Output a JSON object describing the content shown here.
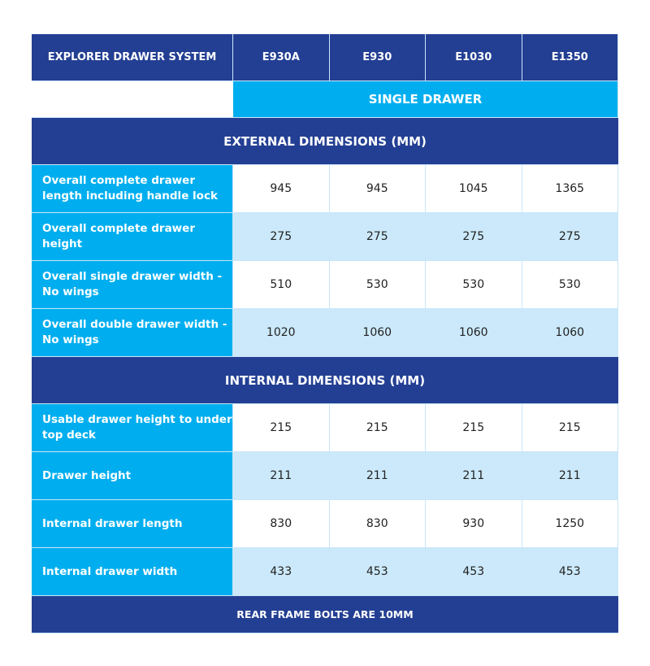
{
  "header": {
    "title": "EXPLORER DRAWER SYSTEM",
    "models": [
      "E930A",
      "E930",
      "E1030",
      "E1350"
    ]
  },
  "subheader": "SINGLE DRAWER",
  "sections": [
    {
      "title": "EXTERNAL DIMENSIONS (MM)",
      "rows": [
        {
          "label": "Overall complete drawer length including handle lock",
          "values": [
            "945",
            "945",
            "1045",
            "1365"
          ]
        },
        {
          "label": "Overall complete drawer height",
          "values": [
            "275",
            "275",
            "275",
            "275"
          ]
        },
        {
          "label": "Overall single drawer width - No wings",
          "values": [
            "510",
            "530",
            "530",
            "530"
          ]
        },
        {
          "label": "Overall double drawer width - No wings",
          "values": [
            "1020",
            "1060",
            "1060",
            "1060"
          ]
        }
      ]
    },
    {
      "title": "INTERNAL DIMENSIONS (MM)",
      "rows": [
        {
          "label": "Usable drawer height to under top deck",
          "values": [
            "215",
            "215",
            "215",
            "215"
          ]
        },
        {
          "label": "Drawer height",
          "values": [
            "211",
            "211",
            "211",
            "211"
          ]
        },
        {
          "label": "Internal drawer length",
          "values": [
            "830",
            "830",
            "930",
            "1250"
          ]
        },
        {
          "label": "Internal drawer width",
          "values": [
            "433",
            "453",
            "453",
            "453"
          ]
        }
      ]
    }
  ],
  "footer": "REAR FRAME BOLTS ARE 10MM",
  "colors": {
    "dark_blue": "#233f93",
    "cyan": "#00aeef",
    "pale_blue": "#cbe9fa"
  }
}
